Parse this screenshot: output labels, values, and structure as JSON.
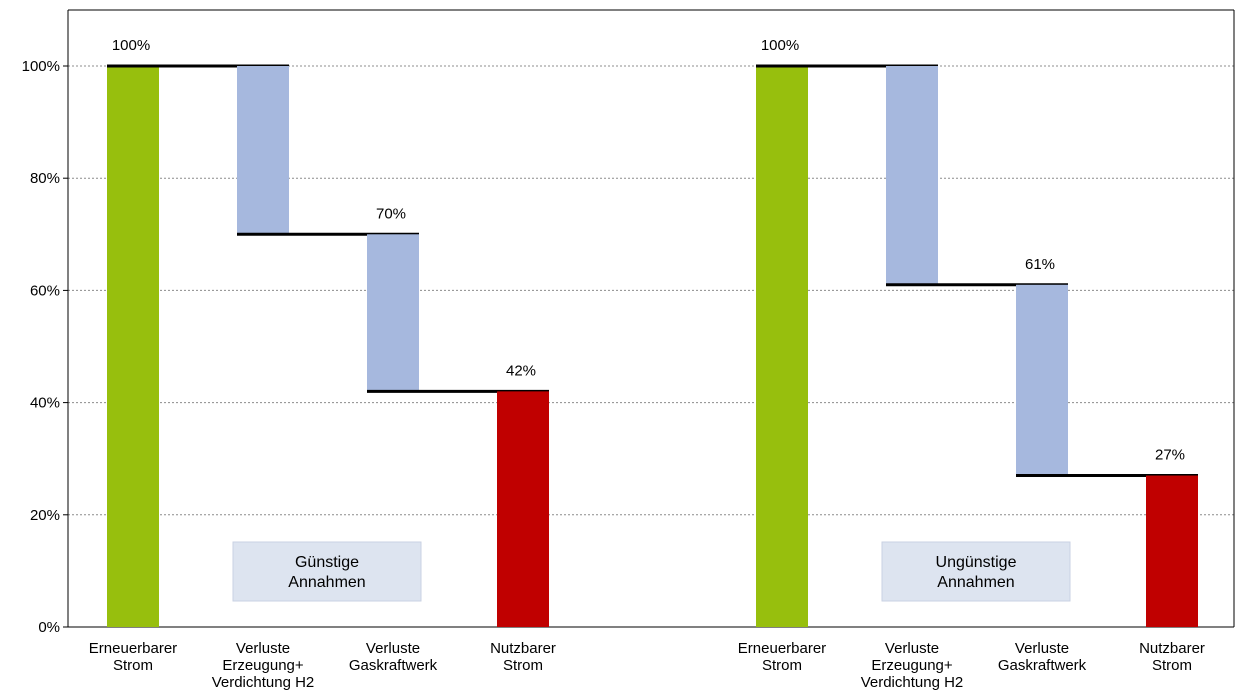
{
  "chart_data": {
    "type": "bar",
    "subtype": "waterfall",
    "ylim": [
      0,
      100
    ],
    "y_ticks": [
      "0%",
      "20%",
      "40%",
      "60%",
      "80%",
      "100%"
    ],
    "grid": true,
    "colors": {
      "start": "#97bf0d",
      "loss": "#a6b8de",
      "result": "#c00000",
      "level_line": "#000000",
      "annotation_box": "#dde4f0"
    },
    "groups": [
      {
        "annotation": [
          "Günstige",
          "Annahmen"
        ],
        "bars": [
          {
            "category": [
              "Erneuerbarer",
              "Strom"
            ],
            "kind": "start",
            "from": 0,
            "to": 100,
            "label": "100%"
          },
          {
            "category": [
              "Verluste",
              "Erzeugung+",
              "Verdichtung H2"
            ],
            "kind": "loss",
            "from": 70,
            "to": 100,
            "label": ""
          },
          {
            "category": [
              "Verluste",
              "Gaskraftwerk"
            ],
            "kind": "loss",
            "from": 42,
            "to": 70,
            "label": "70%"
          },
          {
            "category": [
              "Nutzbarer",
              "Strom"
            ],
            "kind": "result",
            "from": 0,
            "to": 42,
            "label": "42%"
          }
        ]
      },
      {
        "annotation": [
          "Ungünstige",
          "Annahmen"
        ],
        "bars": [
          {
            "category": [
              "Erneuerbarer",
              "Strom"
            ],
            "kind": "start",
            "from": 0,
            "to": 100,
            "label": "100%"
          },
          {
            "category": [
              "Verluste",
              "Erzeugung+",
              "Verdichtung H2"
            ],
            "kind": "loss",
            "from": 61,
            "to": 100,
            "label": ""
          },
          {
            "category": [
              "Verluste",
              "Gaskraftwerk"
            ],
            "kind": "loss",
            "from": 27,
            "to": 61,
            "label": "61%"
          },
          {
            "category": [
              "Nutzbarer",
              "Strom"
            ],
            "kind": "result",
            "from": 0,
            "to": 27,
            "label": "27%"
          }
        ]
      }
    ]
  }
}
